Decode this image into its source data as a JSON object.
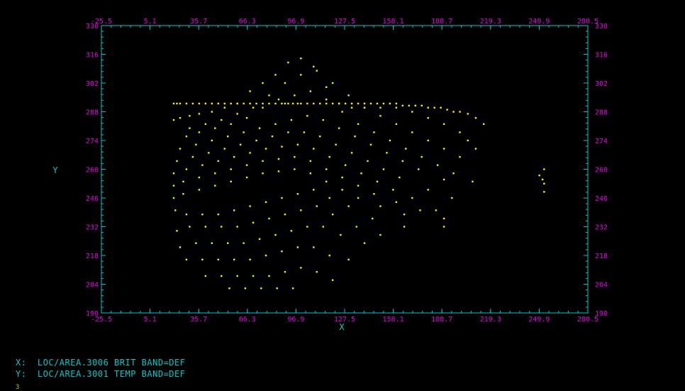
{
  "chart_data": {
    "type": "scatter",
    "title": "",
    "xlabel": "X",
    "ylabel": "Y",
    "xlim": [
      -25.5,
      280.5
    ],
    "ylim": [
      190,
      330
    ],
    "x_ticks": [
      "-25.5",
      "5.1",
      "35.7",
      "66.3",
      "96.9",
      "127.5",
      "158.1",
      "188.7",
      "219.3",
      "249.9",
      "280.5"
    ],
    "y_ticks": [
      "330",
      "316",
      "302",
      "288",
      "274",
      "260",
      "246",
      "232",
      "218",
      "204",
      "190"
    ],
    "grid": false,
    "point_color": "#f0f000",
    "axis_color": "#00c8c8",
    "tick_label_color": "#e000e0",
    "series": [
      {
        "name": "",
        "x": [
          20,
          22,
          24,
          28,
          32,
          36,
          40,
          44,
          48,
          52,
          56,
          60,
          64,
          68,
          72,
          76,
          80,
          84,
          88,
          90,
          92,
          95,
          98,
          100,
          104,
          108,
          112,
          116,
          120,
          124,
          128,
          132,
          136,
          140,
          144,
          148,
          152,
          156,
          160,
          164,
          168,
          172,
          176,
          180,
          184,
          188,
          192,
          196,
          200,
          205,
          210,
          215,
          250,
          252,
          253,
          253,
          253,
          20,
          24,
          30,
          36,
          44,
          52,
          60,
          68,
          76,
          84,
          92,
          100,
          108,
          116,
          124,
          132,
          140,
          150,
          160,
          170,
          180,
          190,
          200,
          205,
          210,
          30,
          40,
          50,
          60,
          70,
          80,
          90,
          100,
          110,
          120,
          130,
          140,
          150,
          160,
          170,
          180,
          190,
          200,
          28,
          36,
          46,
          56,
          66,
          76,
          86,
          96,
          106,
          116,
          126,
          136,
          146,
          156,
          166,
          176,
          186,
          196,
          208,
          24,
          34,
          44,
          54,
          64,
          74,
          84,
          94,
          104,
          114,
          124,
          134,
          144,
          154,
          164,
          174,
          190,
          22,
          32,
          42,
          52,
          62,
          72,
          82,
          92,
          102,
          112,
          122,
          132,
          142,
          152,
          162,
          180,
          195,
          20,
          28,
          38,
          48,
          58,
          68,
          78,
          88,
          98,
          108,
          118,
          128,
          138,
          148,
          158,
          170,
          185,
          20,
          26,
          36,
          46,
          56,
          66,
          76,
          86,
          96,
          106,
          116,
          126,
          136,
          146,
          160,
          175,
          190,
          20,
          26,
          36,
          46,
          56,
          66,
          76,
          86,
          96,
          106,
          116,
          126,
          136,
          150,
          165,
          190,
          21,
          28,
          38,
          48,
          58,
          68,
          78,
          88,
          98,
          108,
          118,
          130,
          145,
          165,
          22,
          30,
          40,
          50,
          60,
          70,
          80,
          90,
          100,
          110,
          120,
          135,
          150,
          24,
          34,
          44,
          54,
          64,
          74,
          84,
          94,
          104,
          114,
          125,
          140,
          28,
          38,
          48,
          58,
          68,
          78,
          88,
          98,
          108,
          118,
          130,
          40,
          50,
          60,
          70,
          80,
          90,
          100,
          110,
          120,
          55,
          65,
          75,
          85,
          95
        ],
        "y": [
          292,
          292,
          292,
          292,
          292,
          292,
          292,
          292,
          292,
          292,
          292,
          292,
          292,
          292,
          292,
          292,
          292,
          292,
          292,
          292,
          292,
          292,
          292,
          292,
          292,
          292,
          292,
          292,
          292,
          292,
          292,
          292,
          292,
          292,
          292,
          292,
          292,
          292,
          292,
          291,
          291,
          291,
          291,
          290,
          290,
          290,
          289,
          288,
          288,
          287,
          285,
          282,
          257,
          255,
          260,
          253,
          249,
          284,
          285,
          286,
          287,
          288,
          290,
          292,
          298,
          302,
          306,
          312,
          314,
          310,
          300,
          292,
          290,
          290,
          290,
          290,
          288,
          285,
          282,
          278,
          274,
          270,
          280,
          282,
          284,
          287,
          290,
          296,
          302,
          306,
          308,
          302,
          296,
          290,
          286,
          282,
          278,
          274,
          270,
          266,
          276,
          278,
          280,
          282,
          285,
          290,
          294,
          296,
          298,
          294,
          288,
          282,
          278,
          274,
          270,
          266,
          262,
          258,
          254,
          270,
          272,
          274,
          276,
          278,
          280,
          282,
          284,
          286,
          284,
          280,
          276,
          272,
          268,
          264,
          260,
          255,
          264,
          266,
          268,
          270,
          272,
          274,
          276,
          278,
          278,
          276,
          272,
          268,
          264,
          260,
          256,
          250,
          246,
          258,
          260,
          262,
          264,
          266,
          268,
          270,
          271,
          272,
          270,
          266,
          262,
          258,
          254,
          250,
          246,
          240,
          252,
          254,
          256,
          258,
          260,
          262,
          264,
          265,
          266,
          264,
          260,
          256,
          252,
          248,
          244,
          240,
          236,
          246,
          248,
          250,
          252,
          254,
          256,
          258,
          259,
          260,
          258,
          254,
          250,
          246,
          242,
          238,
          232,
          240,
          238,
          238,
          238,
          240,
          242,
          244,
          246,
          248,
          250,
          246,
          242,
          236,
          232,
          230,
          232,
          232,
          232,
          232,
          234,
          236,
          238,
          240,
          242,
          238,
          232,
          228,
          222,
          224,
          224,
          224,
          224,
          226,
          228,
          230,
          232,
          232,
          228,
          224,
          216,
          216,
          216,
          216,
          216,
          218,
          220,
          222,
          222,
          218,
          216,
          208,
          208,
          208,
          208,
          208,
          210,
          212,
          210,
          206,
          202,
          202,
          202,
          202,
          202
        ]
      }
    ]
  },
  "footer": {
    "x_line": "X:  LOC/AREA.3006 BRIT BAND=DEF",
    "y_line": "Y:  LOC/AREA.3001 TEMP BAND=DEF",
    "frame_number": "3"
  }
}
